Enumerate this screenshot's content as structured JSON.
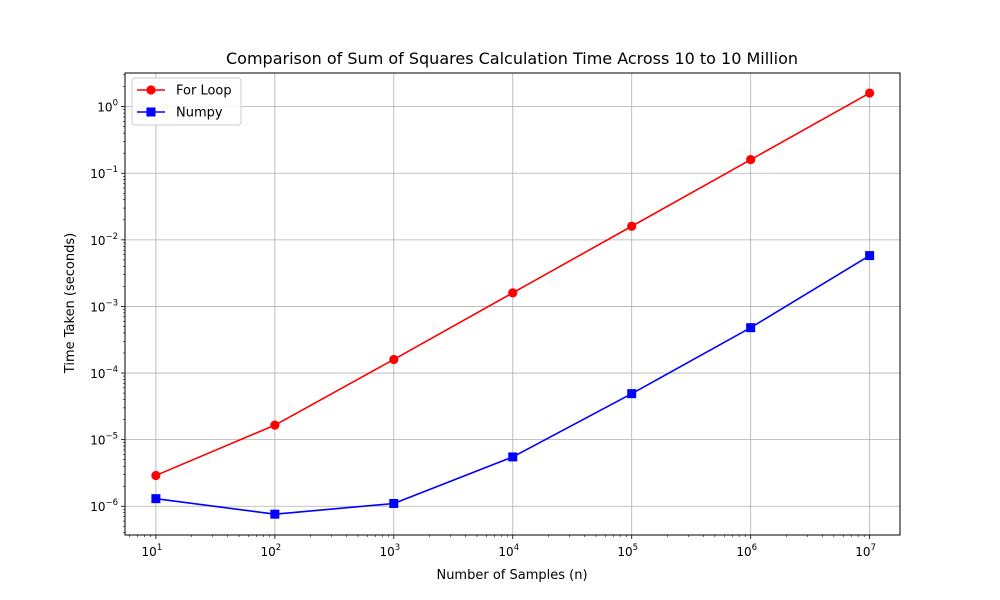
{
  "chart_data": {
    "type": "line",
    "title": "Comparison of Sum of Squares Calculation Time Across 10 to 10 Million",
    "xlabel": "Number of Samples (n)",
    "ylabel": "Time Taken (seconds)",
    "x_scale": "log",
    "y_scale": "log",
    "x": [
      10,
      100,
      1000,
      10000,
      100000,
      1000000,
      10000000
    ],
    "xlim": [
      5.5,
      18000000
    ],
    "ylim": [
      3.7e-07,
      3.2
    ],
    "x_ticks": [
      {
        "value": 10,
        "base": "10",
        "exp": "1"
      },
      {
        "value": 100,
        "base": "10",
        "exp": "2"
      },
      {
        "value": 1000,
        "base": "10",
        "exp": "3"
      },
      {
        "value": 10000,
        "base": "10",
        "exp": "4"
      },
      {
        "value": 100000,
        "base": "10",
        "exp": "5"
      },
      {
        "value": 1000000,
        "base": "10",
        "exp": "6"
      },
      {
        "value": 10000000,
        "base": "10",
        "exp": "7"
      }
    ],
    "y_ticks": [
      {
        "value": 1e-06,
        "base": "10",
        "exp": "−6"
      },
      {
        "value": 1e-05,
        "base": "10",
        "exp": "−5"
      },
      {
        "value": 0.0001,
        "base": "10",
        "exp": "−4"
      },
      {
        "value": 0.001,
        "base": "10",
        "exp": "−3"
      },
      {
        "value": 0.01,
        "base": "10",
        "exp": "−2"
      },
      {
        "value": 0.1,
        "base": "10",
        "exp": "−1"
      },
      {
        "value": 1,
        "base": "10",
        "exp": "0"
      }
    ],
    "grid": true,
    "legend_position": "top-left",
    "series": [
      {
        "name": "For Loop",
        "color": "#ff0000",
        "marker": "circle",
        "values": [
          2.9e-06,
          1.65e-05,
          0.00016,
          0.0016,
          0.016,
          0.16,
          1.6
        ]
      },
      {
        "name": "Numpy",
        "color": "#0000ff",
        "marker": "square",
        "values": [
          1.3e-06,
          7.6e-07,
          1.1e-06,
          5.5e-06,
          4.9e-05,
          0.00048,
          0.0058
        ]
      }
    ]
  }
}
